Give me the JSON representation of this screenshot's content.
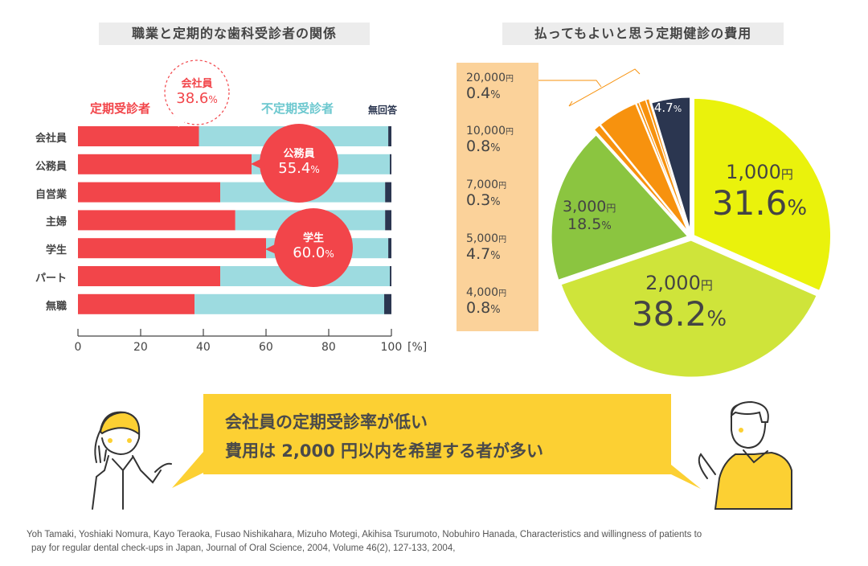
{
  "chart_data": [
    {
      "type": "bar",
      "stacked": true,
      "orientation": "horizontal",
      "title": "職業と定期的な歯科受診者の関係",
      "categories": [
        "会社員",
        "公務員",
        "自営業",
        "主婦",
        "学生",
        "パート",
        "無職"
      ],
      "series": [
        {
          "name": "定期受診者",
          "color": "#f2454a",
          "values": [
            38.6,
            55.4,
            45.4,
            50.2,
            60.0,
            45.4,
            37.2
          ]
        },
        {
          "name": "不定期受診者",
          "color": "#9ddbe0",
          "values": [
            60.4,
            44.1,
            52.6,
            47.8,
            39.0,
            54.1,
            60.5
          ]
        },
        {
          "name": "無回答",
          "color": "#2b3650",
          "values": [
            1.0,
            0.5,
            2.0,
            2.0,
            1.0,
            0.5,
            2.3
          ]
        }
      ],
      "xlim": [
        0,
        100
      ],
      "xticks": [
        "0",
        "20",
        "40",
        "60",
        "80",
        "100"
      ],
      "xunit": "[%]",
      "callouts": [
        {
          "label": "会社員",
          "value": "38.6",
          "unit": "%"
        },
        {
          "label": "公務員",
          "value": "55.4",
          "unit": "%"
        },
        {
          "label": "学生",
          "value": "60.0",
          "unit": "%"
        }
      ]
    },
    {
      "type": "pie",
      "title": "払ってもよいと思う定期健診の費用",
      "start": "top",
      "direction": "clockwise",
      "slices": [
        {
          "label": "1,000",
          "unit": "円",
          "value": 31.6,
          "pct": "31.6",
          "color": "#eaf20c"
        },
        {
          "label": "2,000",
          "unit": "円",
          "value": 38.2,
          "pct": "38.2",
          "color": "#cfe43a"
        },
        {
          "label": "3,000",
          "unit": "円",
          "value": 18.5,
          "pct": "18.5",
          "color": "#8bc540"
        },
        {
          "label": "4,000",
          "unit": "円",
          "value": 0.8,
          "pct": "0.8",
          "color": "#f7920e"
        },
        {
          "label": "5,000",
          "unit": "円",
          "value": 4.7,
          "pct": "4.7",
          "color": "#f7920e"
        },
        {
          "label": "7,000",
          "unit": "円",
          "value": 0.3,
          "pct": "0.3",
          "color": "#f7920e"
        },
        {
          "label": "10,000",
          "unit": "円",
          "value": 0.8,
          "pct": "0.8",
          "color": "#f7920e"
        },
        {
          "label": "20,000",
          "unit": "円",
          "value": 0.4,
          "pct": "0.4",
          "color": "#f7920e"
        },
        {
          "label": "無回答",
          "unit": "",
          "value": 4.7,
          "pct": "4.7",
          "color": "#2b3650"
        }
      ],
      "pct_unit": "%"
    }
  ],
  "banner": {
    "line1": "会社員の定期受診率が低い",
    "line2": "費用は 2,000 円以内を希望する者が多い",
    "color": "#fcd033"
  },
  "citation": {
    "line1": "Yoh Tamaki, Yoshiaki Nomura, Kayo Teraoka, Fusao Nishikahara, Mizuho Motegi, Akihisa Tsurumoto, Nobuhiro Hanada, Characteristics and willingness of patients to",
    "line2": "pay for regular dental check-ups in Japan, Journal of Oral Science, 2004, Volume 46(2), 127-133, 2004,"
  }
}
